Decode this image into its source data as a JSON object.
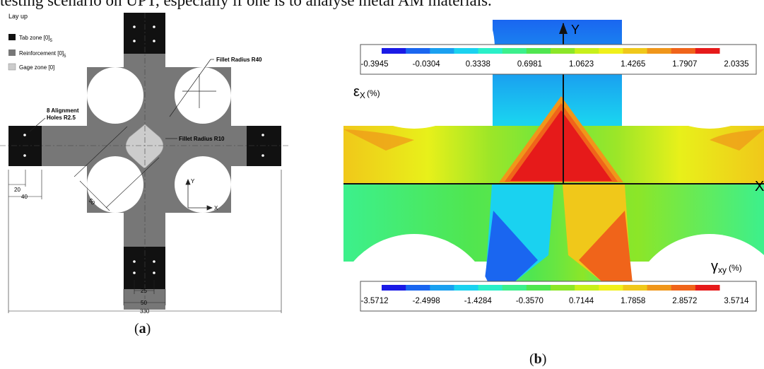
{
  "intro_text": "testing scenario on UPT, especially if one is to analyse metal AM materials.",
  "figure_a": {
    "caption": {
      "open": "(",
      "letter": "a",
      "close": ")"
    },
    "legend": {
      "title": "Lay up",
      "items": [
        {
          "label": "Tab zone [0]",
          "sub": "5",
          "color": "#111111"
        },
        {
          "label": "Reinforcement [0]",
          "sub": "5",
          "color": "#777777"
        },
        {
          "label": "Gage zone [0]",
          "sub": "",
          "color": "#cccccc"
        }
      ]
    },
    "annotations": {
      "fillet_r40": "Fillet Radius R40",
      "fillet_r10": "Fillet Radius R10",
      "alignment_line1": "8 Alignment",
      "alignment_line2": "Holes R2.5"
    },
    "dimensions": {
      "d20": "20",
      "d40": "40",
      "d50_diag": "50",
      "d25": "25",
      "d50": "50",
      "d330": "330"
    },
    "axes": {
      "y": "Y",
      "x": "X"
    }
  },
  "figure_b": {
    "caption": {
      "open": "(",
      "letter": "b",
      "close": ")"
    },
    "axis_y": "Y",
    "axis_x": "X",
    "top_field": {
      "symbol": "ε",
      "sub": "X",
      "unit": "(%)",
      "ticks": [
        "-0.3945",
        "-0.0304",
        "0.3338",
        "0.6981",
        "1.0623",
        "1.4265",
        "1.7907",
        "2.0335"
      ]
    },
    "bottom_field": {
      "symbol": "γ",
      "sub": "xy",
      "unit": "(%)",
      "ticks": [
        "-3.5712",
        "-2.4998",
        "-1.4284",
        "-0.3570",
        "0.7144",
        "1.7858",
        "2.8572",
        "3.5714"
      ]
    },
    "colorbar": [
      "#1a1ae6",
      "#1a66f0",
      "#1aa0f0",
      "#1ad2f0",
      "#2af0c8",
      "#3cf08c",
      "#50e650",
      "#8ce628",
      "#c8f01a",
      "#f0f01a",
      "#f0c81a",
      "#f0961a",
      "#f0641a",
      "#e61a1a"
    ]
  }
}
